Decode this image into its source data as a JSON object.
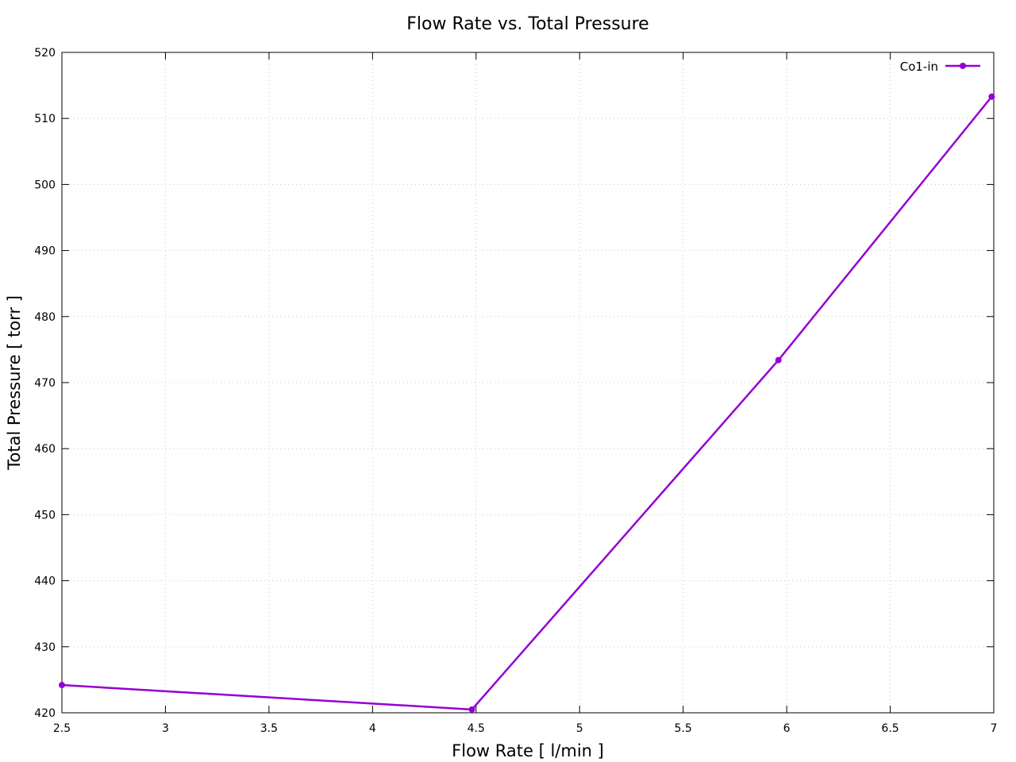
{
  "chart_data": {
    "type": "line",
    "title": "Flow Rate vs. Total Pressure",
    "xlabel": "Flow Rate [ l/min ]",
    "ylabel": "Total Pressure [ torr ]",
    "xlim": [
      2.5,
      7
    ],
    "ylim": [
      420,
      520
    ],
    "x_ticks": [
      "2.5",
      "3",
      "3.5",
      "4",
      "4.5",
      "5",
      "5.5",
      "6",
      "6.5",
      "7"
    ],
    "y_ticks": [
      "420",
      "430",
      "440",
      "450",
      "460",
      "470",
      "480",
      "490",
      "500",
      "510",
      "520"
    ],
    "grid": true,
    "legend_position": "top-right",
    "series": [
      {
        "name": "Co1-in",
        "color": "#9400d3",
        "marker": "circle",
        "points": [
          {
            "x": 2.5,
            "y": 424.2
          },
          {
            "x": 4.48,
            "y": 420.5
          },
          {
            "x": 5.96,
            "y": 473.4
          },
          {
            "x": 6.99,
            "y": 513.3
          }
        ]
      }
    ]
  }
}
